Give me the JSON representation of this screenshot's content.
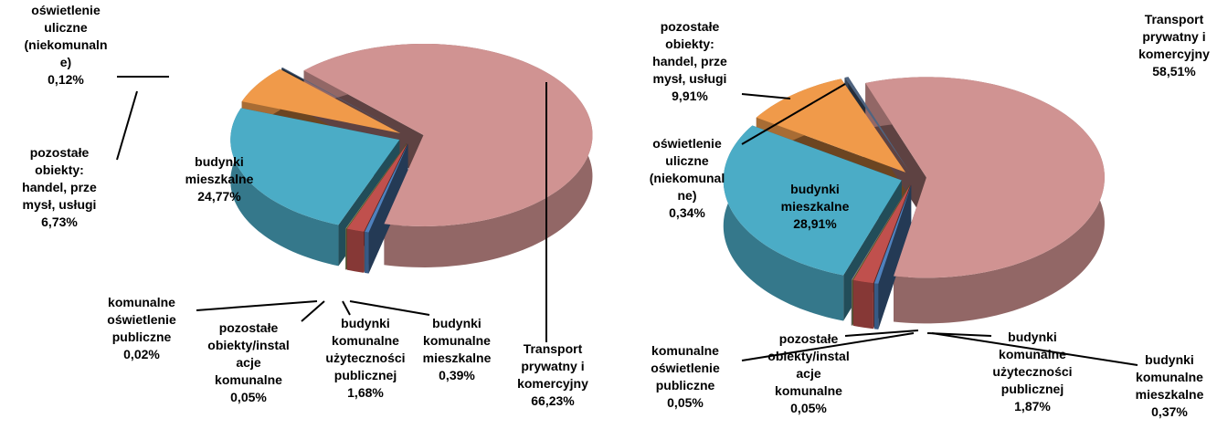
{
  "chart_data": [
    {
      "type": "pie",
      "categories": [
        "Transport\nprywatny i\nkomercyjny",
        "budynki\nkomunalne\nmieszkalne",
        "budynki\nkomunalne\nużyteczności\npublicznej",
        "pozostałe\nobiekty/instal\nacje\nkomunalne",
        "komunalne\noświetlenie\npubliczne",
        "budynki\nmieszkalne",
        "pozostałe\nobiekty:\nhandel, prze\nmysł, usługi",
        "oświetlenie\nuliczne\n(niekomunaln\ne)"
      ],
      "values": [
        66.23,
        0.39,
        1.68,
        0.05,
        0.02,
        24.77,
        6.73,
        0.12
      ],
      "value_labels": [
        "66,23%",
        "0,39%",
        "1,68%",
        "0,05%",
        "0,02%",
        "24,77%",
        "6,73%",
        "0,12%"
      ],
      "colors": [
        "#d09392",
        "#4f81bd",
        "#c0504d",
        "#9bbb59",
        "#8064a2",
        "#4bacc6",
        "#f09a4a",
        "#4f6480"
      ]
    },
    {
      "type": "pie",
      "categories": [
        "Transport\nprywatny i\nkomercyjny",
        "budynki\nkomunalne\nmieszkalne",
        "budynki\nkomunalne\nużyteczności\npublicznej",
        "pozostałe\nobiekty/instal\nacje\nkomunalne",
        "komunalne\noświetlenie\npubliczne",
        "budynki\nmieszkalne",
        "pozostałe\nobiekty:\nhandel, prze\nmysł, usługi",
        "oświetlenie\nuliczne\n(niekomunal\nne)"
      ],
      "values": [
        58.51,
        0.37,
        1.87,
        0.05,
        0.05,
        28.91,
        9.91,
        0.34
      ],
      "value_labels": [
        "58,51%",
        "0,37%",
        "1,87%",
        "0,05%",
        "0,05%",
        "28,91%",
        "9,91%",
        "0,34%"
      ],
      "colors": [
        "#d09392",
        "#4f81bd",
        "#c0504d",
        "#9bbb59",
        "#8064a2",
        "#4bacc6",
        "#f09a4a",
        "#4f6480"
      ]
    }
  ]
}
